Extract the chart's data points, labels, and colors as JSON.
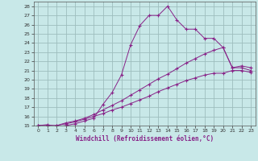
{
  "xlabel": "Windchill (Refroidissement éolien,°C)",
  "background_color": "#c8e8e8",
  "grid_color": "#9dbdbd",
  "line_color": "#882288",
  "xlim": [
    -0.5,
    23.5
  ],
  "ylim": [
    15,
    28.5
  ],
  "xticks": [
    0,
    1,
    2,
    3,
    4,
    5,
    6,
    7,
    8,
    9,
    10,
    11,
    12,
    13,
    14,
    15,
    16,
    17,
    18,
    19,
    20,
    21,
    22,
    23
  ],
  "yticks": [
    15,
    16,
    17,
    18,
    19,
    20,
    21,
    22,
    23,
    24,
    25,
    26,
    27,
    28
  ],
  "line1_x": [
    0,
    1,
    2,
    3,
    4,
    5,
    6,
    7,
    8,
    9,
    10,
    11,
    12,
    13,
    14,
    15,
    16,
    17,
    18,
    19,
    20,
    21,
    22,
    23
  ],
  "line1_y": [
    15,
    15,
    15,
    15.3,
    15.5,
    15.8,
    16.2,
    16.7,
    17.2,
    17.7,
    18.3,
    18.9,
    19.5,
    20.1,
    20.6,
    21.2,
    21.8,
    22.3,
    22.8,
    23.2,
    23.5,
    21.3,
    21.3,
    21.0
  ],
  "line2_x": [
    0,
    1,
    2,
    3,
    4,
    5,
    6,
    7,
    8,
    9,
    10,
    11,
    12,
    13,
    14,
    15,
    16,
    17,
    18,
    19,
    20,
    21,
    22,
    23
  ],
  "line2_y": [
    15,
    15,
    15,
    15.2,
    15.4,
    15.7,
    16.0,
    16.3,
    16.7,
    17.0,
    17.4,
    17.8,
    18.2,
    18.7,
    19.1,
    19.5,
    19.9,
    20.2,
    20.5,
    20.7,
    20.7,
    21.0,
    21.0,
    20.8
  ],
  "line3_x": [
    0,
    1,
    2,
    3,
    4,
    5,
    6,
    7,
    8,
    9,
    10,
    11,
    12,
    13,
    14,
    15,
    16,
    17,
    18,
    19,
    20,
    21,
    22,
    23
  ],
  "line3_y": [
    15,
    15.1,
    14.9,
    15.0,
    15.2,
    15.5,
    15.8,
    17.3,
    18.6,
    20.5,
    23.8,
    25.9,
    27.0,
    27.0,
    28.0,
    26.5,
    25.5,
    25.5,
    24.5,
    24.5,
    23.5,
    21.3,
    21.5,
    21.3
  ]
}
